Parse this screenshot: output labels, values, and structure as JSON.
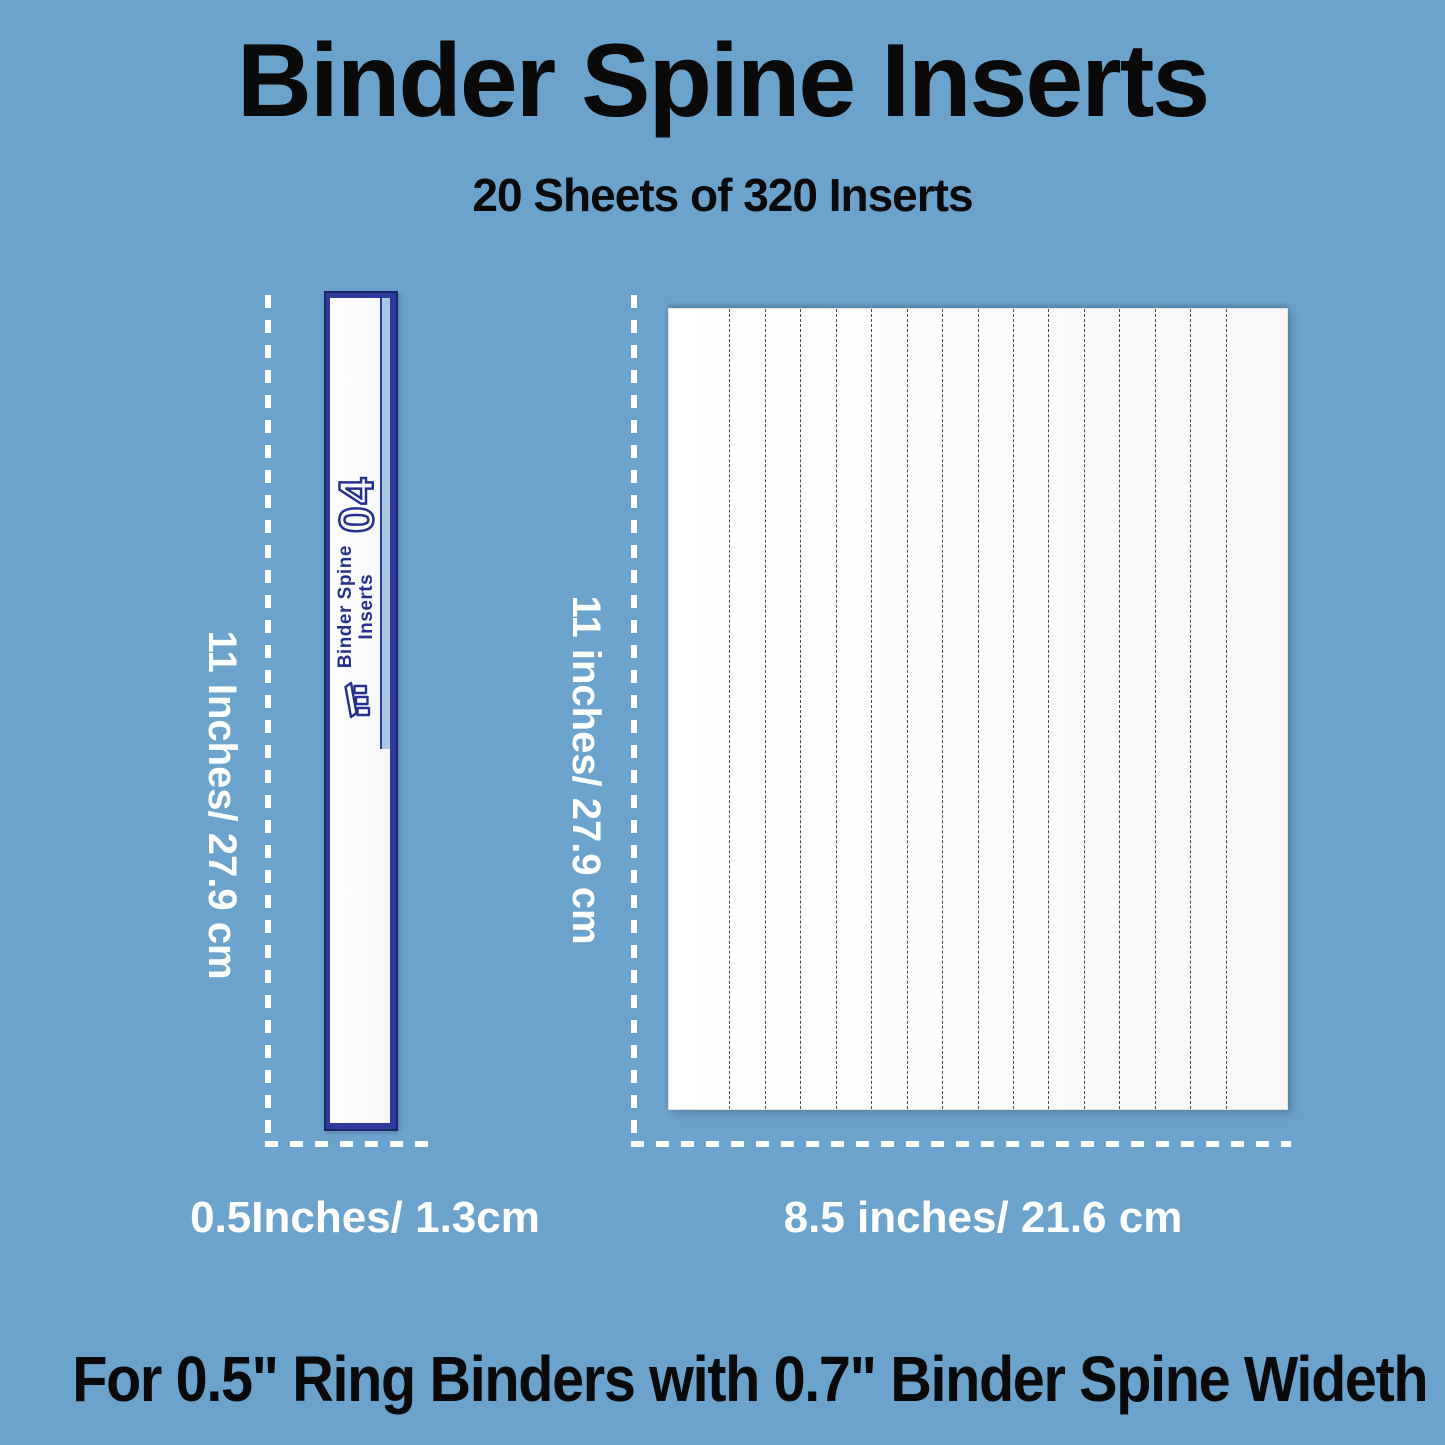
{
  "colors": {
    "background": "#6CA3CD",
    "navy": "#2e3b9d",
    "navy_dark": "#1c2566",
    "label_navy": "#25308c",
    "headline_black": "#0a0a0a",
    "dimension_white": "#ffffff",
    "sheet_white": "#ffffff",
    "pocket_blue": "#a9c9e2",
    "perforation_gray": "#4a4a4a"
  },
  "header": {
    "title": "Binder Spine Inserts",
    "subtitle": "20 Sheets of 320 Inserts"
  },
  "spine": {
    "label_line1": "Binder Spine",
    "label_line2": "Inserts",
    "number": "04",
    "icon": "binder-inserts-icon",
    "height_label": "11 Inches/ 27.9 cm",
    "width_label": "0.5Inches/ 1.3cm"
  },
  "sheet": {
    "height_label": "11 inches/ 27.9 cm",
    "width_label": "8.5 inches/ 21.6 cm",
    "strip_count": 16
  },
  "footer": {
    "text": "For 0.5\" Ring Binders with 0.7\" Binder Spine Wideth"
  }
}
